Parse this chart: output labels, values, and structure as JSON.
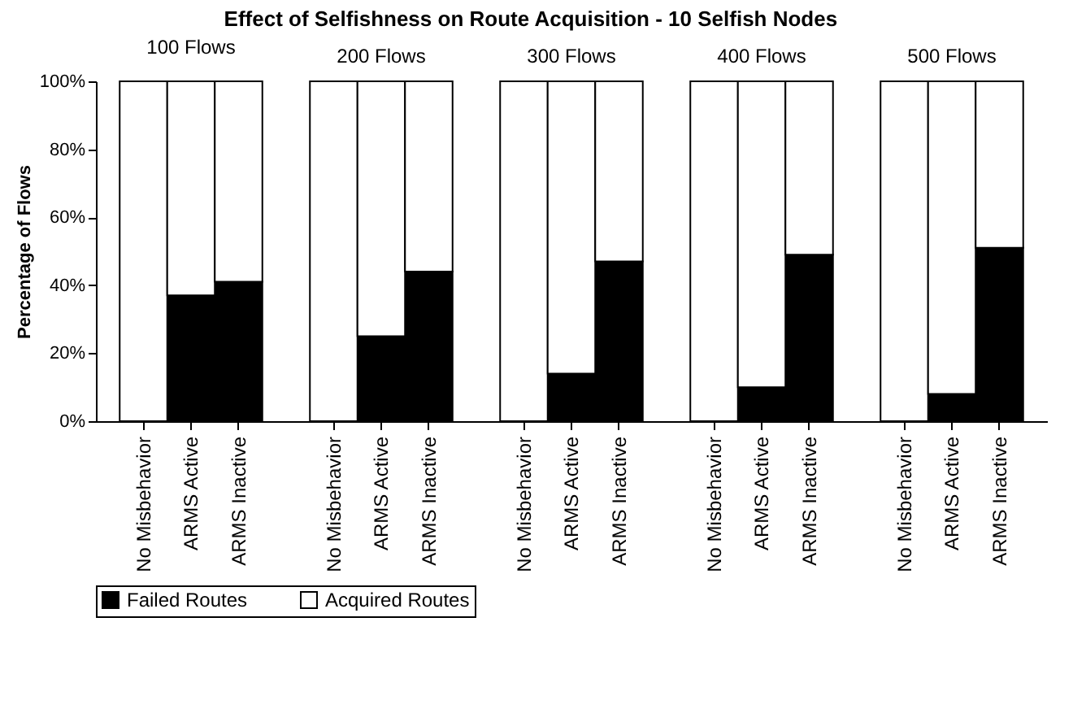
{
  "chart_data": [
    {
      "type": "bar",
      "title": "Effect of Selfishness on Route Acquisition - 10 Selfish Nodes",
      "subtitle": "100 Flows",
      "ylabel": "Percentage of Flows",
      "categories": [
        "No Misbehavior",
        "ARMS Active",
        "ARMS Inactive"
      ],
      "stacked": true,
      "legend": "bottom",
      "ylim": [
        0,
        100
      ],
      "yticks": [
        {
          "value": 0,
          "label": "0%"
        },
        {
          "value": 20,
          "label": "20%"
        },
        {
          "value": 40,
          "label": "40%"
        },
        {
          "value": 60,
          "label": "60%"
        },
        {
          "value": 80,
          "label": "80%"
        },
        {
          "value": 100,
          "label": "100%"
        }
      ],
      "series": [
        {
          "name": "Failed Routes",
          "color": "#000000",
          "values": [
            0,
            37,
            41
          ]
        },
        {
          "name": "Acquired Routes",
          "color": "#ffffff",
          "values": [
            100,
            63,
            59
          ]
        }
      ]
    },
    {
      "type": "bar",
      "subtitle": "200 Flows",
      "categories": [
        "No Misbehavior",
        "ARMS Active",
        "ARMS Inactive"
      ],
      "stacked": true,
      "legend": "bottom",
      "tick_labels": "x",
      "ylim": [
        0,
        100
      ],
      "series": [
        {
          "name": "Failed Routes",
          "color": "#000000",
          "values": [
            0,
            25,
            44
          ]
        },
        {
          "name": "Acquired Routes",
          "color": "#ffffff",
          "values": [
            100,
            75,
            56
          ]
        }
      ]
    },
    {
      "type": "bar",
      "subtitle": "300 Flows",
      "categories": [
        "No Misbehavior",
        "ARMS Active",
        "ARMS Inactive"
      ],
      "stacked": true,
      "legend": "bottom",
      "tick_labels": "x",
      "ylim": [
        0,
        100
      ],
      "series": [
        {
          "name": "Failed Routes",
          "color": "#000000",
          "values": [
            0,
            14,
            47
          ]
        },
        {
          "name": "Acquired Routes",
          "color": "#ffffff",
          "values": [
            100,
            86,
            53
          ]
        }
      ]
    },
    {
      "type": "bar",
      "subtitle": "400 Flows",
      "categories": [
        "No Misbehavior",
        "ARMS Active",
        "ARMS Inactive"
      ],
      "stacked": true,
      "legend": "bottom",
      "tick_labels": "x",
      "ylim": [
        0,
        100
      ],
      "series": [
        {
          "name": "Failed Routes",
          "color": "#000000",
          "values": [
            0,
            10,
            49
          ]
        },
        {
          "name": "Acquired Routes",
          "color": "#ffffff",
          "values": [
            100,
            90,
            51
          ]
        }
      ]
    },
    {
      "type": "bar",
      "subtitle": "500 Flows",
      "categories": [
        "No Misbehavior",
        "ARMS Active",
        "ARMS Inactive"
      ],
      "stacked": true,
      "legend": "bottom",
      "tick_labels": "x",
      "ylim": [
        0,
        100
      ],
      "series": [
        {
          "name": "Failed Routes",
          "color": "#000000",
          "values": [
            0,
            8,
            51
          ]
        },
        {
          "name": "Acquired Routes",
          "color": "#ffffff",
          "values": [
            100,
            92,
            49
          ]
        }
      ]
    }
  ]
}
